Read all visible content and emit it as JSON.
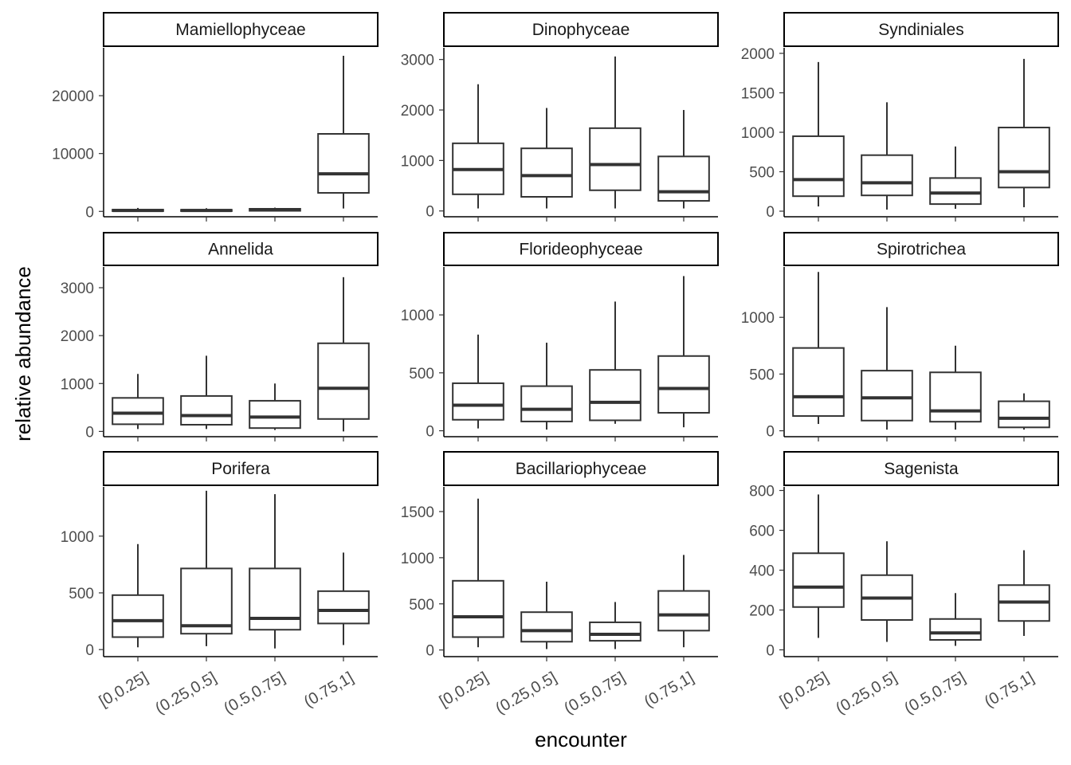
{
  "chart_data": {
    "type": "boxplot",
    "facet_layout": "3x3",
    "xlabel": "encounter",
    "ylabel": "relative abundance",
    "categories": [
      "[0,0.25]",
      "(0.25,0.5]",
      "(0.5,0.75]",
      "(0.75,1]"
    ],
    "grid": false,
    "colors": {
      "box_stroke": "#333333",
      "axis": "#000000",
      "tick_text": "#4d4d4d",
      "strip_border": "#000000"
    },
    "panels": [
      {
        "title": "Mamiellophyceae",
        "ylim": [
          -100,
          28000
        ],
        "yticks": [
          0,
          10000,
          20000
        ],
        "boxes": [
          {
            "low": 0,
            "q1": 50,
            "median": 150,
            "q3": 300,
            "high": 600
          },
          {
            "low": 0,
            "q1": 50,
            "median": 150,
            "q3": 280,
            "high": 550
          },
          {
            "low": 0,
            "q1": 100,
            "median": 250,
            "q3": 450,
            "high": 650
          },
          {
            "low": 500,
            "q1": 3200,
            "median": 6500,
            "q3": 13400,
            "high": 26900
          }
        ]
      },
      {
        "title": "Dinophyceae",
        "ylim": [
          -20,
          3200
        ],
        "yticks": [
          0,
          1000,
          2000,
          3000
        ],
        "boxes": [
          {
            "low": 50,
            "q1": 330,
            "median": 820,
            "q3": 1340,
            "high": 2510
          },
          {
            "low": 50,
            "q1": 280,
            "median": 700,
            "q3": 1240,
            "high": 2040
          },
          {
            "low": 50,
            "q1": 410,
            "median": 920,
            "q3": 1640,
            "high": 3060
          },
          {
            "low": 50,
            "q1": 200,
            "median": 380,
            "q3": 1080,
            "high": 2000
          }
        ]
      },
      {
        "title": "Syndiniales",
        "ylim": [
          -10,
          2050
        ],
        "yticks": [
          0,
          500,
          1000,
          1500,
          2000
        ],
        "boxes": [
          {
            "low": 60,
            "q1": 190,
            "median": 400,
            "q3": 950,
            "high": 1890
          },
          {
            "low": 20,
            "q1": 200,
            "median": 360,
            "q3": 710,
            "high": 1380
          },
          {
            "low": 30,
            "q1": 90,
            "median": 230,
            "q3": 420,
            "high": 820
          },
          {
            "low": 50,
            "q1": 300,
            "median": 500,
            "q3": 1060,
            "high": 1930
          }
        ]
      },
      {
        "title": "Annelida",
        "ylim": [
          -10,
          3400
        ],
        "yticks": [
          0,
          1000,
          2000,
          3000
        ],
        "boxes": [
          {
            "low": 50,
            "q1": 150,
            "median": 380,
            "q3": 700,
            "high": 1200
          },
          {
            "low": 50,
            "q1": 140,
            "median": 330,
            "q3": 740,
            "high": 1580
          },
          {
            "low": 30,
            "q1": 70,
            "median": 300,
            "q3": 640,
            "high": 1000
          },
          {
            "low": 0,
            "q1": 260,
            "median": 900,
            "q3": 1840,
            "high": 3220
          }
        ]
      },
      {
        "title": "Florideophyceae",
        "ylim": [
          -10,
          1400
        ],
        "yticks": [
          0,
          500,
          1000
        ],
        "boxes": [
          {
            "low": 20,
            "q1": 95,
            "median": 220,
            "q3": 410,
            "high": 830
          },
          {
            "low": 10,
            "q1": 80,
            "median": 185,
            "q3": 385,
            "high": 760
          },
          {
            "low": 60,
            "q1": 90,
            "median": 245,
            "q3": 525,
            "high": 1115
          },
          {
            "low": 30,
            "q1": 155,
            "median": 365,
            "q3": 645,
            "high": 1335
          }
        ]
      },
      {
        "title": "Spirotrichea",
        "ylim": [
          -10,
          1430
        ],
        "yticks": [
          0,
          500,
          1000
        ],
        "boxes": [
          {
            "low": 60,
            "q1": 130,
            "median": 300,
            "q3": 730,
            "high": 1400
          },
          {
            "low": 10,
            "q1": 90,
            "median": 290,
            "q3": 530,
            "high": 1090
          },
          {
            "low": 10,
            "q1": 80,
            "median": 175,
            "q3": 515,
            "high": 750
          },
          {
            "low": 10,
            "q1": 30,
            "median": 110,
            "q3": 260,
            "high": 330
          }
        ]
      },
      {
        "title": "Porifera",
        "ylim": [
          -20,
          1420
        ],
        "yticks": [
          0,
          500,
          1000
        ],
        "boxes": [
          {
            "low": 20,
            "q1": 110,
            "median": 255,
            "q3": 480,
            "high": 930
          },
          {
            "low": 30,
            "q1": 140,
            "median": 210,
            "q3": 715,
            "high": 1400
          },
          {
            "low": 10,
            "q1": 175,
            "median": 275,
            "q3": 715,
            "high": 1370
          },
          {
            "low": 40,
            "q1": 230,
            "median": 345,
            "q3": 515,
            "high": 855
          }
        ]
      },
      {
        "title": "Bacillariophyceae",
        "ylim": [
          -20,
          1750
        ],
        "yticks": [
          0,
          500,
          1000,
          1500
        ],
        "boxes": [
          {
            "low": 30,
            "q1": 140,
            "median": 360,
            "q3": 750,
            "high": 1640
          },
          {
            "low": 10,
            "q1": 90,
            "median": 210,
            "q3": 410,
            "high": 740
          },
          {
            "low": 10,
            "q1": 100,
            "median": 170,
            "q3": 300,
            "high": 520
          },
          {
            "low": 30,
            "q1": 210,
            "median": 380,
            "q3": 640,
            "high": 1030
          }
        ]
      },
      {
        "title": "Sagenista",
        "ylim": [
          -10,
          810
        ],
        "yticks": [
          0,
          200,
          400,
          600,
          800
        ],
        "boxes": [
          {
            "low": 60,
            "q1": 215,
            "median": 315,
            "q3": 485,
            "high": 780
          },
          {
            "low": 40,
            "q1": 150,
            "median": 260,
            "q3": 375,
            "high": 545
          },
          {
            "low": 20,
            "q1": 50,
            "median": 85,
            "q3": 155,
            "high": 285
          },
          {
            "low": 70,
            "q1": 145,
            "median": 240,
            "q3": 325,
            "high": 500
          }
        ]
      }
    ]
  }
}
